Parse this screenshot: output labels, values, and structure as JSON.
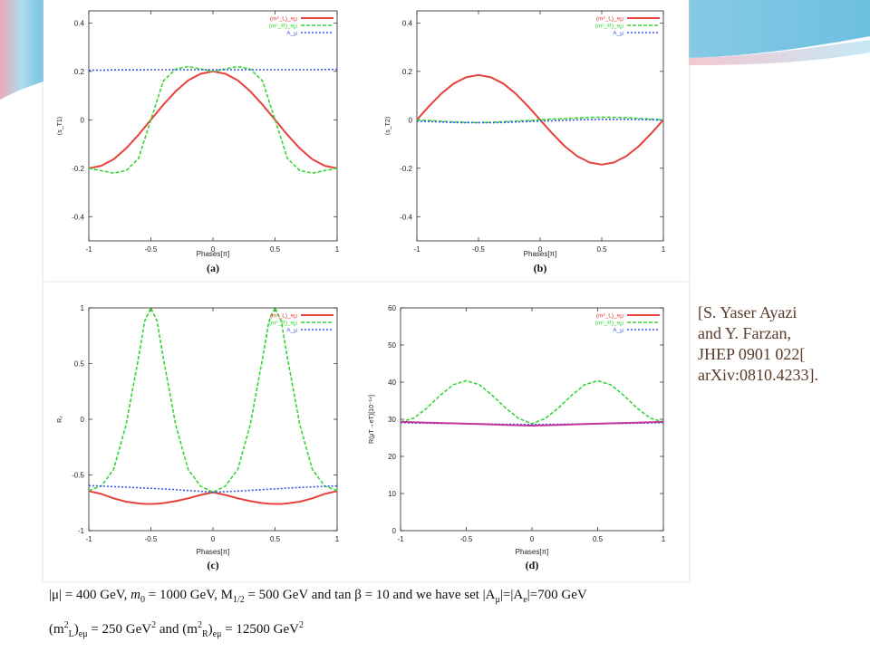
{
  "colors": {
    "red_series": "#e8413c",
    "green_series": "#33d633",
    "blue_series": "#3a57e6",
    "magenta_series": "#c2379c",
    "citation_text": "#5a3a2a"
  },
  "legend_labels": [
    "(m²_L)_eμ",
    "(m²_R)_eμ",
    "A_μ"
  ],
  "citation": {
    "line1": "[S. Yaser Ayazi",
    "line2": "and Y. Farzan,",
    "line3": "JHEP 0901 022[",
    "line4": "arXiv:0810.4233]."
  },
  "caption": {
    "line1_parts": {
      "mu": "|μ| = 400 GeV, ",
      "m0": "m",
      "m0_sub": "0",
      "m0_val": " = 1000 GeV, M",
      "m12_sub": "1/2",
      "m12_val": " = 500 GeV and tan β = 10 and we have set |A",
      "amu_sub": "μ",
      "mid": "|=|A",
      "ae_sub": "e",
      "end": "|=700 GeV"
    },
    "line2_parts": {
      "a": "(m",
      "a_sup": "2",
      "a_sub": "L",
      "b": ")",
      "b_sub": "eμ",
      "c": " = 250 GeV",
      "c_sup": "2",
      "d": " and (m",
      "d_sup": "2",
      "d_sub": "R",
      "e": ")",
      "e_sub": "eμ",
      "f": " = 12500 GeV",
      "f_sup": "2"
    }
  },
  "chart_data": [
    {
      "type": "line",
      "panel_label": "(a)",
      "xlabel": "Phases[π]",
      "ylabel": "⟨s_T1⟩",
      "xlim": [
        -1,
        1
      ],
      "ylim": [
        -0.5,
        0.45
      ],
      "xticks": [
        -1,
        -0.5,
        0,
        0.5,
        1
      ],
      "xtick_labels": [
        "-1",
        "-0.5",
        "0",
        "0.5",
        "1"
      ],
      "yticks": [
        -0.4,
        -0.2,
        0,
        0.2,
        0.4
      ],
      "ytick_labels": [
        "-0.4",
        "-0.2",
        "0",
        "0.2",
        "0.4"
      ],
      "legend": "top-right",
      "x": [
        -1,
        -0.9,
        -0.8,
        -0.7,
        -0.6,
        -0.5,
        -0.4,
        -0.3,
        -0.2,
        -0.1,
        0,
        0.1,
        0.2,
        0.3,
        0.4,
        0.5,
        0.6,
        0.7,
        0.8,
        0.9,
        1
      ],
      "series": [
        {
          "name": "(m²_L)_eμ",
          "values": [
            -0.2,
            -0.19,
            -0.163,
            -0.118,
            -0.062,
            0,
            0.062,
            0.118,
            0.163,
            0.19,
            0.2,
            0.19,
            0.163,
            0.118,
            0.062,
            0,
            -0.062,
            -0.118,
            -0.163,
            -0.19,
            -0.2
          ]
        },
        {
          "name": "(m²_R)_eμ",
          "values": [
            -0.2,
            -0.21,
            -0.22,
            -0.21,
            -0.16,
            0,
            0.16,
            0.21,
            0.22,
            0.21,
            0.2,
            0.21,
            0.22,
            0.21,
            0.16,
            0,
            -0.16,
            -0.21,
            -0.22,
            -0.21,
            -0.2
          ]
        },
        {
          "name": "A_μ",
          "values": [
            0.205,
            0.205,
            0.206,
            0.206,
            0.206,
            0.207,
            0.207,
            0.207,
            0.207,
            0.207,
            0.207,
            0.207,
            0.207,
            0.207,
            0.207,
            0.207,
            0.207,
            0.207,
            0.207,
            0.208,
            0.208
          ]
        }
      ]
    },
    {
      "type": "line",
      "panel_label": "(b)",
      "xlabel": "Phases[π]",
      "ylabel": "⟨s_T2⟩",
      "xlim": [
        -1,
        1
      ],
      "ylim": [
        -0.5,
        0.45
      ],
      "xticks": [
        -1,
        -0.5,
        0,
        0.5,
        1
      ],
      "xtick_labels": [
        "-1",
        "-0.5",
        "0",
        "0.5",
        "1"
      ],
      "yticks": [
        -0.4,
        -0.2,
        0,
        0.2,
        0.4
      ],
      "ytick_labels": [
        "-0.4",
        "-0.2",
        "0",
        "0.2",
        "0.4"
      ],
      "legend": "top-right",
      "x": [
        -1,
        -0.9,
        -0.8,
        -0.7,
        -0.6,
        -0.5,
        -0.4,
        -0.3,
        -0.2,
        -0.1,
        0,
        0.1,
        0.2,
        0.3,
        0.4,
        0.5,
        0.6,
        0.7,
        0.8,
        0.9,
        1
      ],
      "series": [
        {
          "name": "(m²_L)_eμ",
          "values": [
            0,
            0.057,
            0.109,
            0.15,
            0.176,
            0.185,
            0.176,
            0.15,
            0.109,
            0.057,
            0,
            -0.057,
            -0.109,
            -0.15,
            -0.176,
            -0.185,
            -0.176,
            -0.15,
            -0.109,
            -0.057,
            0
          ]
        },
        {
          "name": "(m²_R)_eμ",
          "values": [
            0,
            -0.003,
            -0.006,
            -0.009,
            -0.01,
            -0.011,
            -0.01,
            -0.008,
            -0.005,
            -0.003,
            0,
            0.003,
            0.005,
            0.008,
            0.01,
            0.011,
            0.01,
            0.009,
            0.006,
            0.003,
            0
          ]
        },
        {
          "name": "A_μ",
          "values": [
            -0.005,
            -0.007,
            -0.009,
            -0.011,
            -0.012,
            -0.012,
            -0.012,
            -0.011,
            -0.009,
            -0.007,
            -0.005,
            -0.004,
            -0.002,
            0,
            0.001,
            0.002,
            0.002,
            0.002,
            0.001,
            0,
            -0.001
          ]
        }
      ]
    },
    {
      "type": "line",
      "panel_label": "(c)",
      "xlabel": "Phases[π]",
      "ylabel": "R₂",
      "xlim": [
        -1,
        1
      ],
      "ylim": [
        -1,
        1
      ],
      "xticks": [
        -1,
        -0.5,
        0,
        0.5,
        1
      ],
      "xtick_labels": [
        "-1",
        "-0.5",
        "0",
        "0.5",
        "1"
      ],
      "yticks": [
        -1,
        -0.5,
        0,
        0.5,
        1
      ],
      "ytick_labels": [
        "-1",
        "-0.5",
        "0",
        "0.5",
        "1"
      ],
      "legend": "top-right",
      "x": [
        -1,
        -0.9,
        -0.8,
        -0.7,
        -0.6,
        -0.55,
        -0.5,
        -0.45,
        -0.4,
        -0.3,
        -0.2,
        -0.1,
        0,
        0.1,
        0.2,
        0.3,
        0.4,
        0.45,
        0.5,
        0.55,
        0.6,
        0.7,
        0.8,
        0.9,
        1
      ],
      "series": [
        {
          "name": "(m²_L)_eμ",
          "values": [
            -0.645,
            -0.67,
            -0.71,
            -0.74,
            -0.755,
            -0.76,
            -0.76,
            -0.758,
            -0.753,
            -0.735,
            -0.71,
            -0.68,
            -0.655,
            -0.68,
            -0.71,
            -0.735,
            -0.753,
            -0.758,
            -0.76,
            -0.76,
            -0.755,
            -0.74,
            -0.71,
            -0.67,
            -0.645
          ]
        },
        {
          "name": "(m²_R)_eμ",
          "values": [
            -0.64,
            -0.6,
            -0.45,
            -0.05,
            0.55,
            0.88,
            1.0,
            0.88,
            0.55,
            -0.05,
            -0.45,
            -0.6,
            -0.655,
            -0.6,
            -0.45,
            -0.05,
            0.55,
            0.88,
            1.0,
            0.88,
            0.55,
            -0.05,
            -0.45,
            -0.6,
            -0.64
          ]
        },
        {
          "name": "A_μ",
          "values": [
            -0.595,
            -0.6,
            -0.605,
            -0.61,
            -0.615,
            -0.618,
            -0.62,
            -0.623,
            -0.626,
            -0.632,
            -0.64,
            -0.647,
            -0.655,
            -0.65,
            -0.645,
            -0.638,
            -0.632,
            -0.628,
            -0.625,
            -0.622,
            -0.618,
            -0.612,
            -0.607,
            -0.602,
            -0.598
          ]
        }
      ]
    },
    {
      "type": "line",
      "panel_label": "(d)",
      "xlabel": "Phases[π]",
      "ylabel": "R(μT→eT)[10⁻¹⁴]",
      "xlim": [
        -1,
        1
      ],
      "ylim": [
        0,
        60
      ],
      "xticks": [
        -1,
        -0.5,
        0,
        0.5,
        1
      ],
      "xtick_labels": [
        "-1",
        "-0.5",
        "0",
        "0.5",
        "1"
      ],
      "yticks": [
        0,
        10,
        20,
        30,
        40,
        50,
        60
      ],
      "ytick_labels": [
        "0",
        "10",
        "20",
        "30",
        "40",
        "50",
        "60"
      ],
      "legend": "top-right",
      "x": [
        -1,
        -0.9,
        -0.8,
        -0.7,
        -0.6,
        -0.5,
        -0.4,
        -0.3,
        -0.2,
        -0.1,
        0,
        0.1,
        0.2,
        0.3,
        0.4,
        0.5,
        0.6,
        0.7,
        0.8,
        0.9,
        1
      ],
      "series": [
        {
          "name": "(m²_L)_eμ",
          "values": [
            29.3,
            29.2,
            29.1,
            29.0,
            28.9,
            28.8,
            28.7,
            28.6,
            28.5,
            28.4,
            28.3,
            28.4,
            28.5,
            28.6,
            28.7,
            28.8,
            28.9,
            29.0,
            29.1,
            29.2,
            29.3
          ]
        },
        {
          "name": "(m²_R)_eμ",
          "values": [
            29.3,
            30.3,
            33.0,
            36.4,
            39.3,
            40.4,
            39.3,
            36.4,
            33.0,
            30.2,
            28.8,
            30.2,
            33.0,
            36.4,
            39.3,
            40.4,
            39.3,
            36.4,
            33.0,
            30.3,
            29.3
          ]
        },
        {
          "name": "A_μ",
          "values": [
            29.1,
            29.0,
            28.95,
            28.9,
            28.85,
            28.8,
            28.75,
            28.7,
            28.65,
            28.6,
            28.55,
            28.6,
            28.65,
            28.7,
            28.75,
            28.8,
            28.85,
            28.9,
            28.95,
            29.0,
            29.1
          ]
        }
      ]
    }
  ]
}
